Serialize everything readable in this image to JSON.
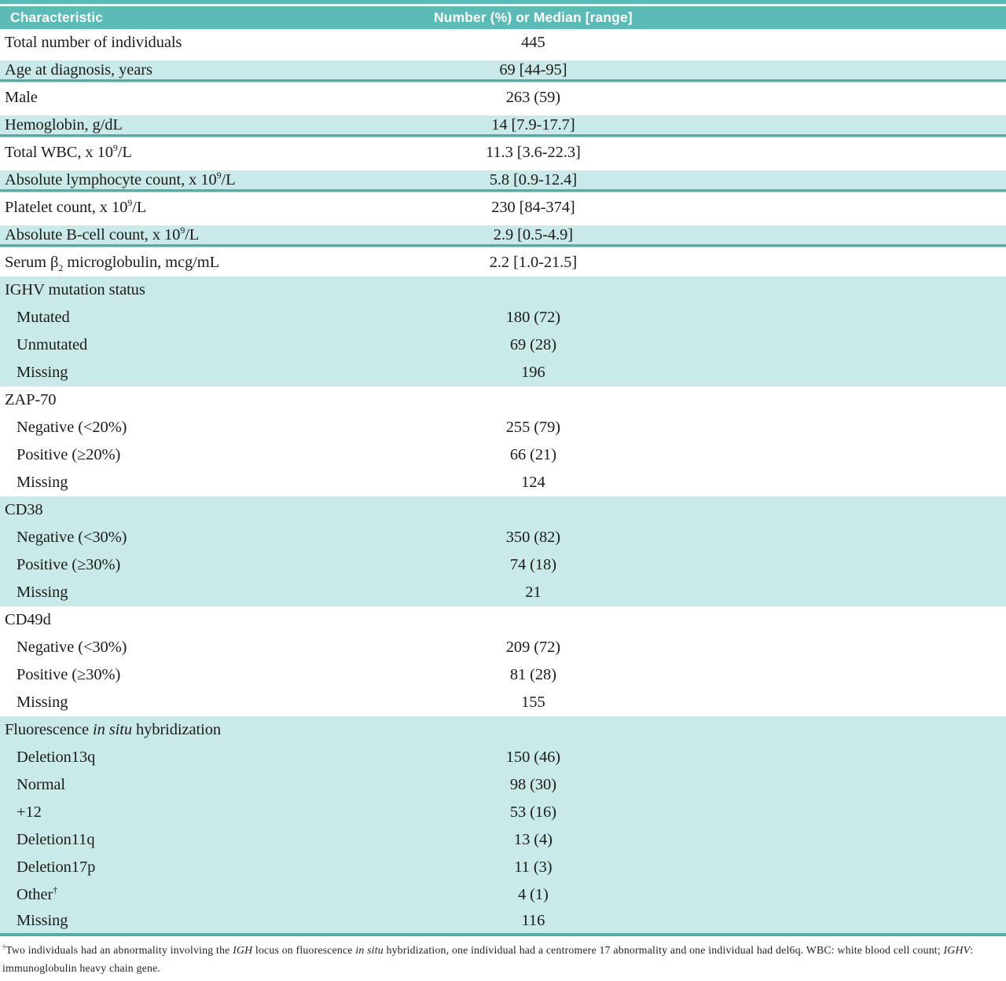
{
  "colors": {
    "teal_header": "#5bbcb7",
    "teal_light": "#c9eae8",
    "teal_rule": "#55aba6",
    "text": "#1c1c1c",
    "header_text": "#ffffff"
  },
  "table": {
    "header": {
      "characteristic": "Characteristic",
      "value": "Number (%) or Median [range]"
    },
    "rows": [
      {
        "label": [
          {
            "t": "Total number of individuals"
          }
        ],
        "value": "445",
        "teal": false
      },
      {
        "label": [
          {
            "t": "Age at diagnosis, years"
          }
        ],
        "value": "69 [44-95]",
        "band": true
      },
      {
        "label": [
          {
            "t": "Male"
          }
        ],
        "value": "263 (59)",
        "teal": false
      },
      {
        "label": [
          {
            "t": "Hemoglobin, g/dL"
          }
        ],
        "value": "14 [7.9-17.7]",
        "band": true
      },
      {
        "label": [
          {
            "t": "Total WBC, x 10"
          },
          {
            "t": "9",
            "s": "sup"
          },
          {
            "t": "/L"
          }
        ],
        "value": "11.3 [3.6-22.3]",
        "teal": false
      },
      {
        "label": [
          {
            "t": "Absolute lymphocyte count, x 10"
          },
          {
            "t": "9",
            "s": "sup"
          },
          {
            "t": "/L"
          }
        ],
        "value": "5.8 [0.9-12.4]",
        "band": true
      },
      {
        "label": [
          {
            "t": "Platelet count, x 10"
          },
          {
            "t": "9",
            "s": "sup"
          },
          {
            "t": "/L"
          }
        ],
        "value": "230 [84-374]",
        "teal": false
      },
      {
        "label": [
          {
            "t": "Absolute B-cell count, x 10"
          },
          {
            "t": "9",
            "s": "sup"
          },
          {
            "t": "/L"
          }
        ],
        "value": "2.9 [0.5-4.9]",
        "band": true
      },
      {
        "label": [
          {
            "t": "Serum β"
          },
          {
            "t": "2",
            "s": "sub"
          },
          {
            "t": " microglobulin, mcg/mL"
          }
        ],
        "value": "2.2 [1.0-21.5]",
        "teal": false
      },
      {
        "label": [
          {
            "t": "IGHV mutation status"
          }
        ],
        "value": "",
        "teal": true
      },
      {
        "label": [
          {
            "t": "Mutated"
          }
        ],
        "value": "180 (72)",
        "teal": true,
        "indent": true
      },
      {
        "label": [
          {
            "t": "Unmutated"
          }
        ],
        "value": "69 (28)",
        "teal": true,
        "indent": true
      },
      {
        "label": [
          {
            "t": "Missing"
          }
        ],
        "value": "196",
        "teal": true,
        "indent": true
      },
      {
        "label": [
          {
            "t": "ZAP-70"
          }
        ],
        "value": "",
        "teal": false
      },
      {
        "label": [
          {
            "t": "Negative (<20%)"
          }
        ],
        "value": "255 (79)",
        "teal": false,
        "indent": true
      },
      {
        "label": [
          {
            "t": "Positive (≥20%)"
          }
        ],
        "value": "66 (21)",
        "teal": false,
        "indent": true
      },
      {
        "label": [
          {
            "t": "Missing"
          }
        ],
        "value": "124",
        "teal": false,
        "indent": true
      },
      {
        "label": [
          {
            "t": "CD38"
          }
        ],
        "value": "",
        "teal": true
      },
      {
        "label": [
          {
            "t": "Negative (<30%)"
          }
        ],
        "value": "350 (82)",
        "teal": true,
        "indent": true
      },
      {
        "label": [
          {
            "t": "Positive (≥30%)"
          }
        ],
        "value": "74 (18)",
        "teal": true,
        "indent": true
      },
      {
        "label": [
          {
            "t": "Missing"
          }
        ],
        "value": "21",
        "teal": true,
        "indent": true
      },
      {
        "label": [
          {
            "t": "CD49d"
          }
        ],
        "value": "",
        "teal": false
      },
      {
        "label": [
          {
            "t": "Negative (<30%)"
          }
        ],
        "value": "209 (72)",
        "teal": false,
        "indent": true
      },
      {
        "label": [
          {
            "t": "Positive (≥30%)"
          }
        ],
        "value": "81 (28)",
        "teal": false,
        "indent": true
      },
      {
        "label": [
          {
            "t": "Missing"
          }
        ],
        "value": "155",
        "teal": false,
        "indent": true
      },
      {
        "label": [
          {
            "t": "Fluorescence "
          },
          {
            "t": "in situ",
            "s": "i"
          },
          {
            "t": " hybridization"
          }
        ],
        "value": "",
        "teal": true
      },
      {
        "label": [
          {
            "t": "Deletion13q"
          }
        ],
        "value": "150 (46)",
        "teal": true,
        "indent": true
      },
      {
        "label": [
          {
            "t": "Normal"
          }
        ],
        "value": "98 (30)",
        "teal": true,
        "indent": true
      },
      {
        "label": [
          {
            "t": "+12"
          }
        ],
        "value": "53 (16)",
        "teal": true,
        "indent": true
      },
      {
        "label": [
          {
            "t": "Deletion11q"
          }
        ],
        "value": "13 (4)",
        "teal": true,
        "indent": true
      },
      {
        "label": [
          {
            "t": "Deletion17p"
          }
        ],
        "value": "11 (3)",
        "teal": true,
        "indent": true
      },
      {
        "label": [
          {
            "t": "Other"
          },
          {
            "t": "†",
            "s": "sup"
          }
        ],
        "value": "4 (1)",
        "teal": true,
        "indent": true
      },
      {
        "label": [
          {
            "t": "Missing"
          }
        ],
        "value": "116",
        "teal": true,
        "indent": true,
        "rule": true
      }
    ]
  },
  "footnote": {
    "segments": [
      {
        "t": "†",
        "s": "sup"
      },
      {
        "t": "Two individuals had an abnormality involving the "
      },
      {
        "t": "IGH",
        "s": "i"
      },
      {
        "t": " locus on fluorescence "
      },
      {
        "t": "in situ",
        "s": "i"
      },
      {
        "t": " hybridization, one individual had a centromere 17 abnormality and one individual had del6q. WBC: white blood cell count; "
      },
      {
        "t": "IGHV",
        "s": "i"
      },
      {
        "t": ": immunoglobulin heavy chain gene."
      }
    ]
  }
}
